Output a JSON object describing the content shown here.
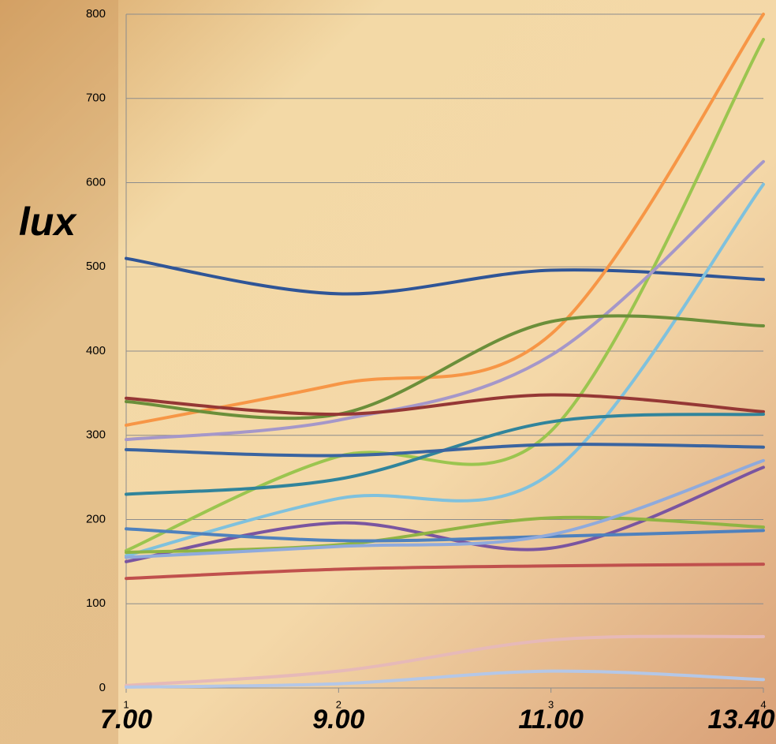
{
  "chart_data": {
    "type": "line",
    "y_label": "lux",
    "categories": [
      "1",
      "2",
      "3",
      "4"
    ],
    "time_labels": [
      "7.00",
      "9.00",
      "11.00",
      "13.40"
    ],
    "ylim": [
      0,
      800
    ],
    "yticks": [
      0,
      100,
      200,
      300,
      400,
      500,
      600,
      700,
      800
    ],
    "grid": true,
    "smooth": true,
    "series": [
      {
        "color": "#2f5597",
        "values": [
          510,
          468,
          496,
          485
        ]
      },
      {
        "color": "#f79646",
        "values": [
          312,
          361,
          420,
          800
        ]
      },
      {
        "color": "#9bc54f",
        "values": [
          163,
          275,
          305,
          770
        ]
      },
      {
        "color": "#a597c9",
        "values": [
          295,
          318,
          395,
          625
        ]
      },
      {
        "color": "#7fc1dd",
        "values": [
          157,
          225,
          255,
          598
        ]
      },
      {
        "color": "#6b8f3a",
        "values": [
          340,
          325,
          435,
          430
        ]
      },
      {
        "color": "#953735",
        "values": [
          344,
          325,
          348,
          328
        ]
      },
      {
        "color": "#31849b",
        "values": [
          230,
          248,
          316,
          325
        ]
      },
      {
        "color": "#3a64a0",
        "values": [
          283,
          276,
          289,
          286
        ]
      },
      {
        "color": "#7a55a0",
        "values": [
          150,
          196,
          166,
          262
        ]
      },
      {
        "color": "#8fb443",
        "values": [
          161,
          170,
          202,
          191
        ]
      },
      {
        "color": "#4f81bd",
        "values": [
          189,
          175,
          180,
          187
        ]
      },
      {
        "color": "#8faadc",
        "values": [
          155,
          168,
          182,
          270
        ]
      },
      {
        "color": "#c0504d",
        "values": [
          130,
          141,
          145,
          147
        ]
      },
      {
        "color": "#e6b9b8",
        "values": [
          3,
          20,
          57,
          61
        ]
      },
      {
        "color": "#b4c7e7",
        "values": [
          1,
          5,
          20,
          10
        ]
      }
    ]
  }
}
